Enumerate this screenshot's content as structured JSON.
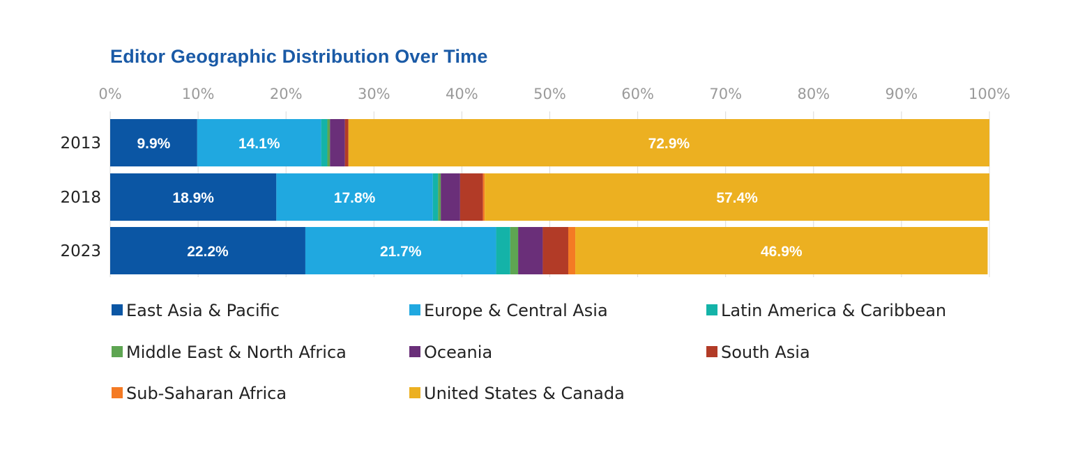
{
  "chart_data": {
    "type": "bar",
    "orientation": "horizontal",
    "stacked": true,
    "title": "Editor Geographic Distribution Over Time",
    "categories": [
      "2013",
      "2018",
      "2023"
    ],
    "xlim": [
      0,
      100
    ],
    "xticks": [
      "0%",
      "10%",
      "20%",
      "30%",
      "40%",
      "50%",
      "60%",
      "70%",
      "80%",
      "90%",
      "100%"
    ],
    "grid": true,
    "legend_position": "bottom",
    "series": [
      {
        "name": "East Asia & Pacific",
        "color": "#0b56a4",
        "values": [
          9.9,
          18.9,
          22.2
        ],
        "labels": [
          "9.9%",
          "18.9%",
          "22.2%"
        ]
      },
      {
        "name": "Europe & Central Asia",
        "color": "#20a8e0",
        "values": [
          14.1,
          17.8,
          21.7
        ],
        "labels": [
          "14.1%",
          "17.8%",
          "21.7%"
        ]
      },
      {
        "name": "Latin America & Caribbean",
        "color": "#14b3a8",
        "values": [
          0.7,
          0.6,
          1.6
        ],
        "labels": [
          "",
          "",
          ""
        ]
      },
      {
        "name": "Middle East & North Africa",
        "color": "#5ea552",
        "values": [
          0.3,
          0.3,
          0.9
        ],
        "labels": [
          "",
          "",
          ""
        ]
      },
      {
        "name": "Oceania",
        "color": "#6a2f79",
        "values": [
          1.7,
          2.2,
          2.8
        ],
        "labels": [
          "",
          "",
          ""
        ]
      },
      {
        "name": "South Asia",
        "color": "#b23b27",
        "values": [
          0.4,
          2.6,
          2.9
        ],
        "labels": [
          "",
          "",
          ""
        ]
      },
      {
        "name": "Sub-Saharan Africa",
        "color": "#f47a24",
        "values": [
          0.0,
          0.2,
          0.8
        ],
        "labels": [
          "",
          "",
          ""
        ]
      },
      {
        "name": "United States & Canada",
        "color": "#ecb021",
        "values": [
          72.9,
          57.4,
          46.9
        ],
        "labels": [
          "72.9%",
          "57.4%",
          "46.9%"
        ]
      }
    ]
  }
}
